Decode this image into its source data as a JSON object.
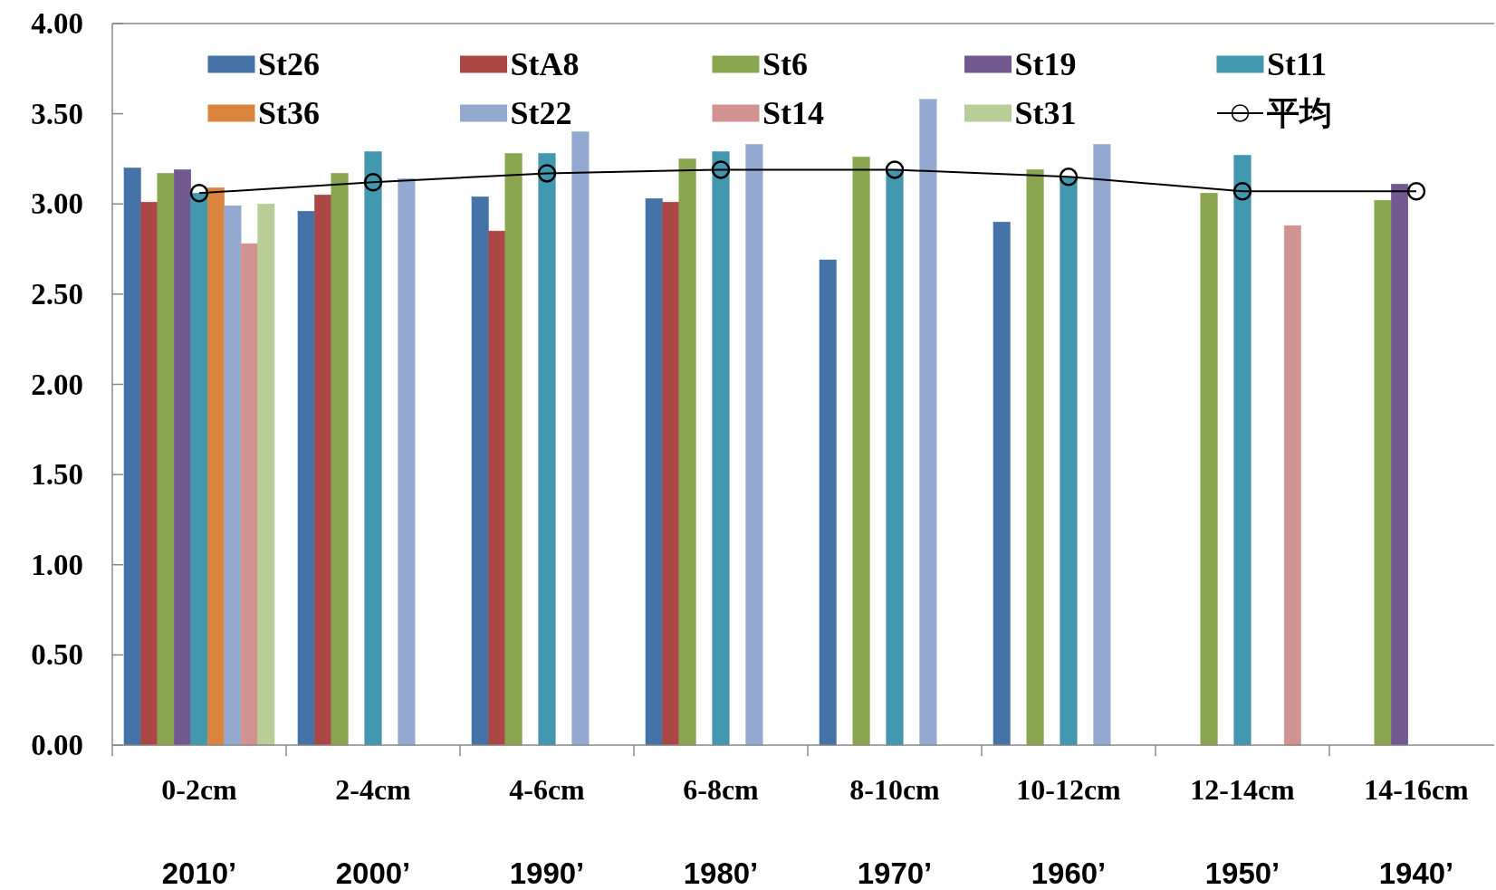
{
  "chart_data": {
    "type": "bar",
    "categories": [
      "0-2cm\n2010’",
      "2-4cm\n2000’",
      "4-6cm\n1990’",
      "6-8cm\n1980’",
      "8-10cm\n1970’",
      "10-12cm\n1960’",
      "12-14cm\n1950’",
      "14-16cm\n1940’"
    ],
    "series": [
      {
        "name": "St26",
        "color": "#4572a7",
        "values": [
          3.2,
          2.96,
          3.04,
          3.03,
          2.69,
          2.9,
          null,
          null
        ]
      },
      {
        "name": "StA8",
        "color": "#aa4643",
        "values": [
          3.01,
          3.05,
          2.85,
          3.01,
          null,
          null,
          null,
          null
        ]
      },
      {
        "name": "St6",
        "color": "#89a54e",
        "values": [
          3.17,
          3.17,
          3.28,
          3.25,
          3.26,
          3.19,
          3.06,
          3.02
        ]
      },
      {
        "name": "St19",
        "color": "#71588f",
        "values": [
          3.19,
          null,
          null,
          null,
          null,
          null,
          null,
          3.11
        ]
      },
      {
        "name": "St11",
        "color": "#4198af",
        "values": [
          3.06,
          3.29,
          3.28,
          3.29,
          3.19,
          3.15,
          3.27,
          null
        ]
      },
      {
        "name": "St36",
        "color": "#db843d",
        "values": [
          3.09,
          null,
          null,
          null,
          null,
          null,
          null,
          null
        ]
      },
      {
        "name": "St22",
        "color": "#93a9cf",
        "values": [
          2.99,
          3.14,
          3.4,
          3.33,
          3.58,
          3.33,
          null,
          null
        ]
      },
      {
        "name": "St14",
        "color": "#d19392",
        "values": [
          2.78,
          null,
          null,
          null,
          null,
          null,
          2.88,
          null
        ]
      },
      {
        "name": "St31",
        "color": "#b9cd96",
        "values": [
          3.0,
          null,
          null,
          null,
          null,
          null,
          null,
          null
        ]
      },
      {
        "name": "平均",
        "type": "line",
        "color": "#000000",
        "marker": "circle",
        "values": [
          3.06,
          3.12,
          3.17,
          3.19,
          3.19,
          3.15,
          3.07,
          3.07
        ]
      }
    ],
    "ylim": [
      0,
      4
    ],
    "yticks": [
      {
        "value": 0,
        "label": "0.00"
      },
      {
        "value": 0.5,
        "label": "0.50"
      },
      {
        "value": 1,
        "label": "1.00"
      },
      {
        "value": 1.5,
        "label": "1.50"
      },
      {
        "value": 2,
        "label": "2.00"
      },
      {
        "value": 2.5,
        "label": "2.50"
      },
      {
        "value": 3,
        "label": "3.00"
      },
      {
        "value": 3.5,
        "label": "3.50"
      },
      {
        "value": 4,
        "label": "4.00"
      }
    ],
    "grid": false,
    "legend": "top"
  }
}
